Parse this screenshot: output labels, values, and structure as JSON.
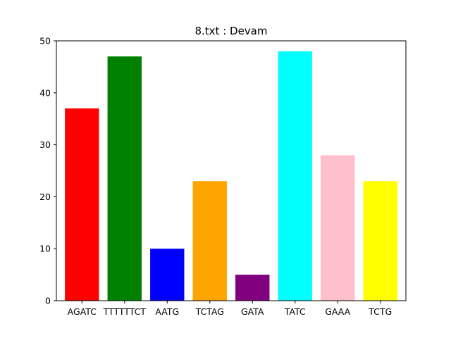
{
  "chart_data": {
    "type": "bar",
    "title": "8.txt : Devam",
    "xlabel": "",
    "ylabel": "",
    "categories": [
      "AGATC",
      "TTTTTTCT",
      "AATG",
      "TCTAG",
      "GATA",
      "TATC",
      "GAAA",
      "TCTG"
    ],
    "values": [
      37,
      47,
      10,
      23,
      5,
      48,
      28,
      23
    ],
    "colors": [
      "#ff0000",
      "#008000",
      "#0000ff",
      "#ffa500",
      "#800080",
      "#00ffff",
      "#ffc0cb",
      "#ffff00"
    ],
    "ylim": [
      0,
      50
    ],
    "yticks": [
      0,
      10,
      20,
      30,
      40,
      50
    ],
    "grid": false,
    "legend": "none"
  }
}
